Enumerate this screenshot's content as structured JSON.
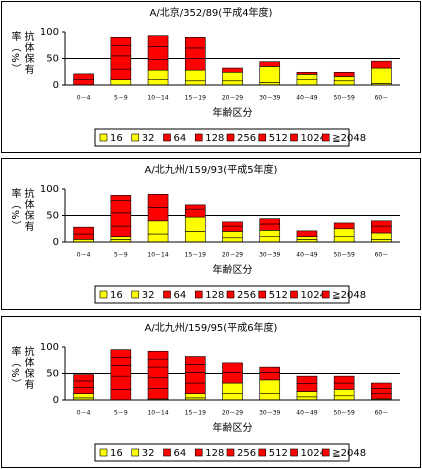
{
  "chart_data": [
    {
      "type": "stacked-bar",
      "title": "A/北京/352/89(平成4年度)",
      "xlabel": "年齢区分",
      "ylabel": "抗体保有率（%）",
      "categories": [
        "0－4",
        "5－9",
        "10－14",
        "15－19",
        "20－29",
        "30－39",
        "40－49",
        "50－59",
        "60－"
      ],
      "ylim": [
        0,
        100
      ],
      "yticks": [
        0,
        50,
        100
      ],
      "grid": true,
      "series": [
        {
          "name": "16",
          "color": "#ffff00",
          "values": [
            0,
            0,
            10,
            8,
            8,
            5,
            10,
            8,
            3
          ]
        },
        {
          "name": "32",
          "color": "#ffff00",
          "values": [
            0,
            10,
            18,
            20,
            16,
            30,
            10,
            8,
            29
          ]
        },
        {
          "name": "64",
          "color": "#ff0000",
          "values": [
            10,
            20,
            20,
            22,
            8,
            9,
            4,
            8,
            13
          ]
        },
        {
          "name": "128",
          "color": "#ff0000",
          "values": [
            11,
            25,
            25,
            20,
            0,
            0,
            0,
            0,
            0
          ]
        },
        {
          "name": "256",
          "color": "#ff0000",
          "values": [
            0,
            20,
            20,
            20,
            0,
            0,
            0,
            0,
            0
          ]
        },
        {
          "name": "512",
          "color": "#ff0000",
          "values": [
            0,
            15,
            0,
            0,
            0,
            0,
            0,
            0,
            0
          ]
        },
        {
          "name": "1024",
          "color": "#ff0000",
          "values": [
            0,
            0,
            0,
            0,
            0,
            0,
            0,
            0,
            0
          ]
        },
        {
          "name": "≧2048",
          "color": "#ff0000",
          "values": [
            0,
            0,
            0,
            0,
            0,
            0,
            0,
            0,
            0
          ]
        }
      ]
    },
    {
      "type": "stacked-bar",
      "title": "A/北九州/159/93(平成5年度)",
      "xlabel": "年齢区分",
      "ylabel": "抗体保有率（%）",
      "categories": [
        "0－4",
        "5－9",
        "10－14",
        "15－19",
        "20－29",
        "30－39",
        "40－49",
        "50－59",
        "60－"
      ],
      "ylim": [
        0,
        100
      ],
      "yticks": [
        0,
        50,
        100
      ],
      "grid": true,
      "series": [
        {
          "name": "16",
          "color": "#ffff00",
          "values": [
            0,
            5,
            15,
            20,
            8,
            10,
            5,
            10,
            5
          ]
        },
        {
          "name": "32",
          "color": "#ffff00",
          "values": [
            5,
            5,
            25,
            27,
            12,
            12,
            5,
            15,
            12
          ]
        },
        {
          "name": "64",
          "color": "#ff0000",
          "values": [
            10,
            20,
            25,
            15,
            10,
            12,
            11,
            11,
            13
          ]
        },
        {
          "name": "128",
          "color": "#ff0000",
          "values": [
            13,
            25,
            25,
            8,
            8,
            10,
            0,
            0,
            10
          ]
        },
        {
          "name": "256",
          "color": "#ff0000",
          "values": [
            0,
            23,
            0,
            0,
            0,
            0,
            0,
            0,
            0
          ]
        },
        {
          "name": "512",
          "color": "#ff0000",
          "values": [
            0,
            10,
            0,
            0,
            0,
            0,
            0,
            0,
            0
          ]
        },
        {
          "name": "1024",
          "color": "#ff0000",
          "values": [
            0,
            0,
            0,
            0,
            0,
            0,
            0,
            0,
            0
          ]
        },
        {
          "name": "≧2048",
          "color": "#ff0000",
          "values": [
            0,
            0,
            0,
            0,
            0,
            0,
            0,
            0,
            0
          ]
        }
      ]
    },
    {
      "type": "stacked-bar",
      "title": "A/北九州/159/95(平成6年度)",
      "xlabel": "年齢区分",
      "ylabel": "抗体保有率（%）",
      "categories": [
        "0－4",
        "5－9",
        "10－14",
        "15－19",
        "20－29",
        "30－39",
        "40－49",
        "50－59",
        "60－"
      ],
      "ylim": [
        0,
        100
      ],
      "yticks": [
        0,
        50,
        100
      ],
      "grid": true,
      "series": [
        {
          "name": "16",
          "color": "#ffff00",
          "values": [
            4,
            0,
            0,
            4,
            12,
            12,
            6,
            8,
            0
          ]
        },
        {
          "name": "32",
          "color": "#ffff00",
          "values": [
            8,
            0,
            2,
            8,
            20,
            26,
            10,
            12,
            2
          ]
        },
        {
          "name": "64",
          "color": "#ff0000",
          "values": [
            12,
            20,
            20,
            20,
            20,
            14,
            15,
            12,
            10
          ]
        },
        {
          "name": "128",
          "color": "#ff0000",
          "values": [
            12,
            25,
            20,
            20,
            18,
            10,
            14,
            13,
            10
          ]
        },
        {
          "name": "256",
          "color": "#ff0000",
          "values": [
            12,
            20,
            20,
            15,
            0,
            0,
            0,
            0,
            10
          ]
        },
        {
          "name": "512",
          "color": "#ff0000",
          "values": [
            0,
            15,
            15,
            15,
            0,
            0,
            0,
            0,
            0
          ]
        },
        {
          "name": "1024",
          "color": "#ff0000",
          "values": [
            0,
            15,
            15,
            0,
            0,
            0,
            0,
            0,
            0
          ]
        },
        {
          "name": "≧2048",
          "color": "#ff0000",
          "values": [
            0,
            0,
            0,
            0,
            0,
            0,
            0,
            0,
            0
          ]
        }
      ]
    }
  ]
}
